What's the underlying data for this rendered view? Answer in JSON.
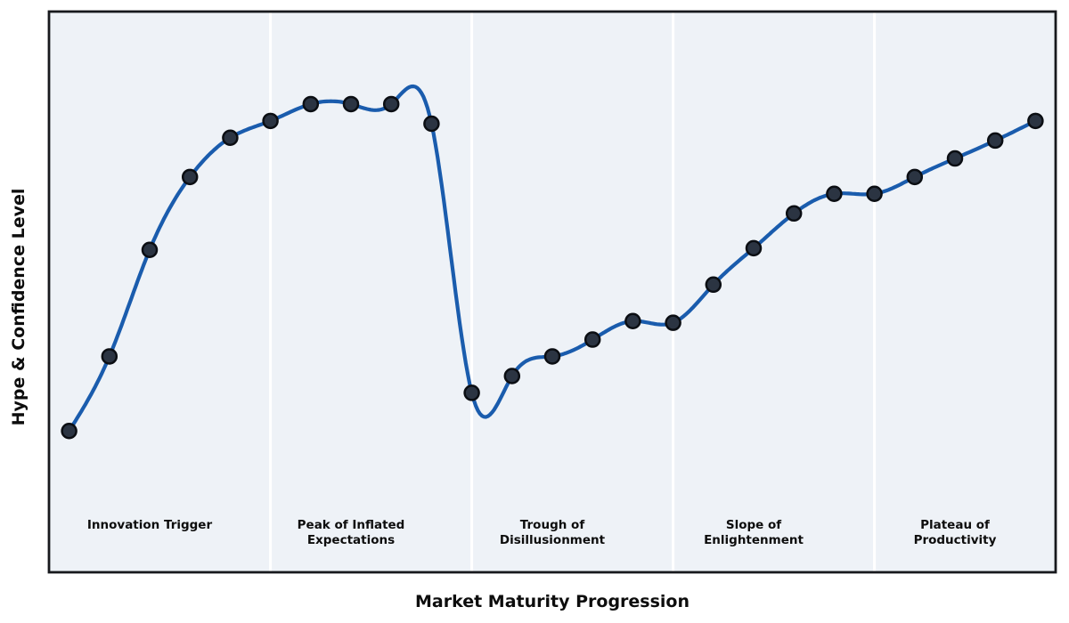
{
  "figure": {
    "background": "#ffffff",
    "plot_background": "#eef2f7",
    "border_color": "#17191d"
  },
  "chart_data": {
    "type": "line",
    "title": "",
    "xlabel": "Market Maturity Progression",
    "ylabel": "Hype & Confidence Level",
    "x": [
      0,
      1,
      2,
      3,
      4,
      5,
      6,
      7,
      8,
      9,
      10,
      11,
      12,
      13,
      14,
      15,
      16,
      17,
      18,
      19,
      20,
      21,
      22,
      23,
      24
    ],
    "values": [
      25.2,
      38.5,
      57.5,
      70.5,
      77.5,
      80.5,
      83.5,
      83.5,
      83.5,
      80,
      32,
      35,
      38.5,
      41.5,
      44.8,
      44.5,
      51.3,
      57.8,
      64,
      67.5,
      67.5,
      70.5,
      73.8,
      77,
      80.5
    ],
    "xlim": [
      -0.5,
      24.5
    ],
    "ylim": [
      0,
      100
    ],
    "grid": false,
    "legend": false,
    "interpolation": "natural-cubic-spline",
    "line_color": "#1a5cad",
    "line_width": 4.2,
    "marker_color": "#2b3442",
    "marker_edge_color": "#0b0e13",
    "marker_radius": 8,
    "divider_x": [
      5,
      10,
      15,
      20
    ],
    "divider_color": "#ffffff",
    "phases": [
      {
        "lines": [
          "Innovation Trigger"
        ],
        "x": 2
      },
      {
        "lines": [
          "Peak of Inflated",
          "Expectations"
        ],
        "x": 7
      },
      {
        "lines": [
          "Trough of",
          "Disillusionment"
        ],
        "x": 12
      },
      {
        "lines": [
          "Slope of",
          "Enlightenment"
        ],
        "x": 17
      },
      {
        "lines": [
          "Plateau of",
          "Productivity"
        ],
        "x": 22
      }
    ]
  }
}
